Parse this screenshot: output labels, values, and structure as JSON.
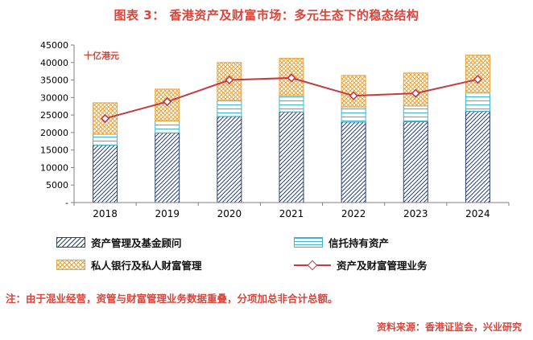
{
  "title": "图表 3： 香港资产及财富市场：多元生态下的稳态结构",
  "note": "注：由于混业经营，资管与财富管理业务数据重叠，分项加总非合计总额。",
  "source": "资料来源：香港证监会，兴业研究",
  "colors": {
    "accent": "#d8453b",
    "axis": "#7f7f7f",
    "series_navy": "#2b4170",
    "series_cyan": "#3fb3cc",
    "series_orange": "#e8a33d",
    "line_red": "#c23a44"
  },
  "chart_data": {
    "type": "stacked-bar+line",
    "title": "香港资产及财富市场：多元生态下的稳态结构",
    "unit_label": "十亿港元",
    "categories": [
      "2018",
      "2019",
      "2020",
      "2021",
      "2022",
      "2023",
      "2024"
    ],
    "series": [
      {
        "name": "资产管理及基金顾问",
        "pattern": "diagonal",
        "color": "#2b4170",
        "values": [
          16400,
          19900,
          24600,
          25900,
          23000,
          23100,
          26100
        ]
      },
      {
        "name": "信托持有资产",
        "pattern": "horizontal",
        "color": "#3fb3cc",
        "values": [
          3100,
          3400,
          4500,
          4700,
          4300,
          4500,
          5200
        ]
      },
      {
        "name": "私人银行及私人财富管理",
        "pattern": "crosshatch",
        "color": "#e8a33d",
        "values": [
          9000,
          9100,
          10900,
          10600,
          9000,
          9400,
          10800
        ]
      }
    ],
    "line_series": {
      "name": "资产及财富管理业务",
      "color": "#c23a44",
      "values": [
        24000,
        28800,
        35000,
        35600,
        30500,
        31200,
        35200
      ]
    },
    "ylim": [
      0,
      45000
    ],
    "ytick_step": 5000,
    "ytick_labels": [
      "-",
      "5000",
      "10000",
      "15000",
      "20000",
      "25000",
      "30000",
      "35000",
      "40000",
      "45000"
    ],
    "grid": false,
    "legend_position": "bottom"
  }
}
